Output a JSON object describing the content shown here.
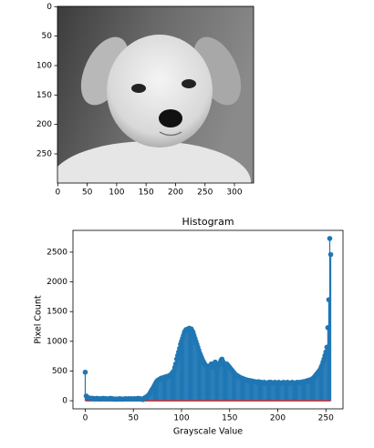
{
  "chart_data": [
    {
      "type": "image",
      "xlim": [
        -0.5,
        332.5
      ],
      "ylim": [
        299.5,
        -0.5
      ],
      "xticks": [
        0,
        50,
        100,
        150,
        200,
        250,
        300
      ],
      "yticks": [
        0,
        50,
        100,
        150,
        200,
        250
      ]
    },
    {
      "type": "stem",
      "title": "Histogram",
      "x_label": "Grayscale Value",
      "y_label": "Pixel Count",
      "color": "#1f77b4",
      "baseline_color": "#d62728",
      "xlim": [
        -12.75,
        267.75
      ],
      "ylim": [
        -136.5,
        2866.5
      ],
      "xticks": [
        0,
        50,
        100,
        150,
        200,
        250
      ],
      "yticks": [
        0,
        500,
        1000,
        1500,
        2000,
        2500
      ],
      "x": [
        0,
        1,
        2,
        3,
        4,
        5,
        6,
        7,
        8,
        9,
        10,
        11,
        12,
        13,
        14,
        15,
        16,
        17,
        18,
        19,
        20,
        21,
        22,
        23,
        24,
        25,
        26,
        27,
        28,
        29,
        30,
        31,
        32,
        33,
        34,
        35,
        36,
        37,
        38,
        39,
        40,
        41,
        42,
        43,
        44,
        45,
        46,
        47,
        48,
        49,
        50,
        51,
        52,
        53,
        54,
        55,
        56,
        57,
        58,
        59,
        60,
        61,
        62,
        63,
        64,
        65,
        66,
        67,
        68,
        69,
        70,
        71,
        72,
        73,
        74,
        75,
        76,
        77,
        78,
        79,
        80,
        81,
        82,
        83,
        84,
        85,
        86,
        87,
        88,
        89,
        90,
        91,
        92,
        93,
        94,
        95,
        96,
        97,
        98,
        99,
        100,
        101,
        102,
        103,
        104,
        105,
        106,
        107,
        108,
        109,
        110,
        111,
        112,
        113,
        114,
        115,
        116,
        117,
        118,
        119,
        120,
        121,
        122,
        123,
        124,
        125,
        126,
        127,
        128,
        129,
        130,
        131,
        132,
        133,
        134,
        135,
        136,
        137,
        138,
        139,
        140,
        141,
        142,
        143,
        144,
        145,
        146,
        147,
        148,
        149,
        150,
        151,
        152,
        153,
        154,
        155,
        156,
        157,
        158,
        159,
        160,
        161,
        162,
        163,
        164,
        165,
        166,
        167,
        168,
        169,
        170,
        171,
        172,
        173,
        174,
        175,
        176,
        177,
        178,
        179,
        180,
        181,
        182,
        183,
        184,
        185,
        186,
        187,
        188,
        189,
        190,
        191,
        192,
        193,
        194,
        195,
        196,
        197,
        198,
        199,
        200,
        201,
        202,
        203,
        204,
        205,
        206,
        207,
        208,
        209,
        210,
        211,
        212,
        213,
        214,
        215,
        216,
        217,
        218,
        219,
        220,
        221,
        222,
        223,
        224,
        225,
        226,
        227,
        228,
        229,
        230,
        231,
        232,
        233,
        234,
        235,
        236,
        237,
        238,
        239,
        240,
        241,
        242,
        243,
        244,
        245,
        246,
        247,
        248,
        249,
        250,
        251,
        252,
        253,
        254,
        255
      ],
      "values": [
        480,
        80,
        60,
        50,
        45,
        40,
        40,
        35,
        40,
        35,
        30,
        35,
        40,
        35,
        30,
        35,
        30,
        35,
        30,
        40,
        35,
        30,
        35,
        30,
        30,
        35,
        40,
        30,
        35,
        30,
        25,
        30,
        30,
        25,
        30,
        30,
        35,
        30,
        25,
        30,
        30,
        30,
        35,
        30,
        30,
        35,
        30,
        30,
        35,
        30,
        30,
        35,
        30,
        35,
        30,
        40,
        30,
        35,
        30,
        25,
        20,
        40,
        50,
        60,
        70,
        80,
        100,
        120,
        150,
        180,
        200,
        230,
        260,
        290,
        320,
        340,
        350,
        360,
        370,
        380,
        380,
        390,
        380,
        400,
        390,
        410,
        400,
        420,
        430,
        440,
        460,
        480,
        500,
        560,
        620,
        700,
        760,
        820,
        880,
        950,
        1000,
        1050,
        1100,
        1150,
        1180,
        1200,
        1190,
        1210,
        1220,
        1200,
        1210,
        1180,
        1150,
        1100,
        1050,
        1000,
        950,
        900,
        850,
        800,
        760,
        720,
        680,
        650,
        620,
        600,
        580,
        560,
        550,
        570,
        600,
        620,
        580,
        560,
        600,
        650,
        620,
        580,
        560,
        600,
        640,
        680,
        700,
        660,
        620,
        600,
        580,
        620,
        600,
        580,
        560,
        540,
        520,
        500,
        480,
        460,
        440,
        430,
        420,
        410,
        400,
        390,
        380,
        380,
        370,
        360,
        360,
        350,
        350,
        340,
        340,
        340,
        330,
        330,
        330,
        320,
        320,
        320,
        310,
        310,
        320,
        310,
        300,
        310,
        300,
        300,
        310,
        300,
        290,
        300,
        300,
        310,
        300,
        310,
        300,
        290,
        300,
        310,
        300,
        290,
        300,
        310,
        300,
        290,
        300,
        300,
        310,
        300,
        290,
        300,
        310,
        300,
        300,
        290,
        300,
        310,
        300,
        300,
        290,
        300,
        310,
        300,
        300,
        310,
        300,
        310,
        320,
        310,
        320,
        330,
        320,
        340,
        330,
        350,
        340,
        360,
        370,
        380,
        400,
        420,
        440,
        460,
        480,
        500,
        520,
        560,
        600,
        650,
        700,
        760,
        820,
        900,
        1230,
        1700,
        2730,
        2460
      ]
    }
  ]
}
